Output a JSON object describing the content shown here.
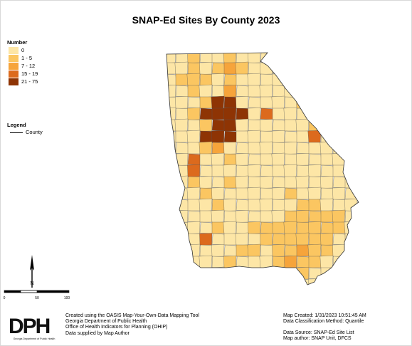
{
  "title": "SNAP-Ed Sites By County 2023",
  "legend": {
    "heading": "Number",
    "classes": [
      {
        "label": "0",
        "color": "#fde6a6"
      },
      {
        "label": "1 - 5",
        "color": "#fbc661"
      },
      {
        "label": "7 - 12",
        "color": "#f6a43b"
      },
      {
        "label": "15 - 19",
        "color": "#dc6a1d"
      },
      {
        "label": "21 - 75",
        "color": "#8e3404"
      }
    ]
  },
  "legend2": {
    "title": "Legend",
    "item": "County"
  },
  "north_label": "N",
  "scale": {
    "ticks": [
      "0",
      "50",
      "100"
    ]
  },
  "logo": {
    "text": "DPH",
    "tagline": "Georgia Department of Public Health"
  },
  "credits": [
    "Created using the OASIS Map-Your-Own-Data Mapping Tool",
    "Georgia Department of Public Health",
    "Office of Health Indicators for Planning (OHIP)",
    "Data supplied by Map Author"
  ],
  "metadata": {
    "created": "Map Created: 1/31/2023 10:51:45 AM",
    "classification": "Data Classification Method: Quantile",
    "source": "Data Source: SNAP-Ed Site List",
    "author": "Map author: SNAP Unit, DFCS"
  }
}
